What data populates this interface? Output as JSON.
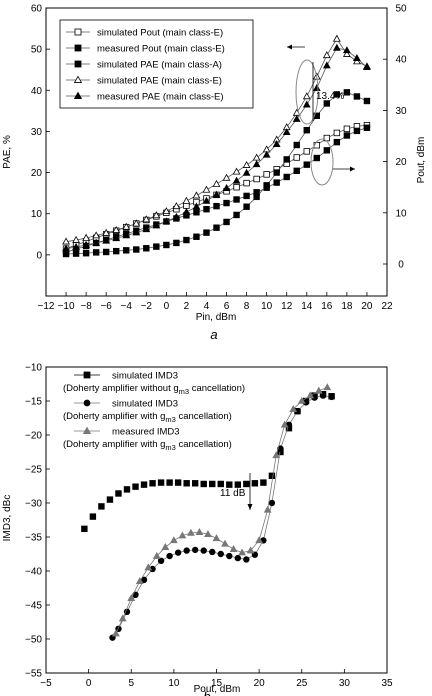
{
  "chart_data": [
    {
      "type": "line",
      "panel_label": "a",
      "xlabel": "Pin, dBm",
      "ylabel": "PAE, %",
      "y2label": "Pout, dBm",
      "xlim": [
        -12,
        22
      ],
      "ylim": [
        -10,
        60
      ],
      "y2lim": [
        -6.25,
        50
      ],
      "xticks": [
        "−12",
        "−10",
        "−8",
        "−6",
        "−4",
        "−2",
        "0",
        "2",
        "4",
        "6",
        "8",
        "10",
        "12",
        "14",
        "16",
        "18",
        "20",
        "22"
      ],
      "yticks": [
        "0",
        "10",
        "20",
        "30",
        "40",
        "50",
        "60"
      ],
      "y2ticks": [
        "0",
        "10",
        "20",
        "30",
        "40",
        "50"
      ],
      "grid": false,
      "legend_position": "top-left",
      "annotation": "13.4%",
      "series": [
        {
          "name": "simulated Pout (main class-E)",
          "axis": "right",
          "marker": "square-open",
          "x": [
            -10,
            -9,
            -8,
            -7,
            -6,
            -5,
            -4,
            -3,
            -2,
            -1,
            0,
            1,
            2,
            3,
            4,
            5,
            6,
            7,
            8,
            9,
            10,
            11,
            12,
            13,
            14,
            15,
            16,
            17,
            18,
            19,
            20
          ],
          "y": [
            3,
            3.7,
            4.4,
            5.1,
            5.8,
            6.5,
            7.2,
            7.9,
            8.6,
            9.3,
            10,
            10.7,
            11.4,
            12.1,
            12.8,
            13.5,
            14.2,
            15,
            15.8,
            16.6,
            17.5,
            18.5,
            19.6,
            20.8,
            22,
            23.2,
            24.6,
            25.6,
            26.4,
            26.9,
            27.1
          ]
        },
        {
          "name": "measured Pout (main class-E)",
          "axis": "right",
          "marker": "square-filled",
          "x": [
            -10,
            -9,
            -8,
            -7,
            -6,
            -5,
            -4,
            -3,
            -2,
            -1,
            0,
            1,
            2,
            3,
            4,
            5,
            6,
            7,
            8,
            9,
            10,
            11,
            12,
            13,
            14,
            15,
            16,
            17,
            18,
            19,
            20
          ],
          "y": [
            2.3,
            2.9,
            3.5,
            4.1,
            4.7,
            5.3,
            5.9,
            6.5,
            7.1,
            7.7,
            8.3,
            8.9,
            9.5,
            10.1,
            10.7,
            11.3,
            11.9,
            12.6,
            13.3,
            14,
            14.9,
            15.9,
            17,
            18.2,
            19.4,
            20.7,
            22.2,
            23.8,
            25.1,
            26,
            26.6
          ]
        },
        {
          "name": "simulated PAE (main class-A)",
          "axis": "left",
          "marker": "square-filled",
          "x": [
            -10,
            -9,
            -8,
            -7,
            -6,
            -5,
            -4,
            -3,
            -2,
            -1,
            0,
            1,
            2,
            3,
            4,
            5,
            6,
            7,
            8,
            9,
            10,
            11,
            12,
            13,
            14,
            15,
            16,
            17,
            18,
            19,
            20
          ],
          "y": [
            0.2,
            0.3,
            0.4,
            0.6,
            0.7,
            0.9,
            1.1,
            1.3,
            1.6,
            2,
            2.4,
            2.9,
            3.6,
            4.4,
            5.4,
            6.6,
            8,
            9.7,
            11.7,
            14.1,
            16.9,
            20,
            23.2,
            26.7,
            30.3,
            33.8,
            36.8,
            39,
            39.5,
            38.5,
            37.4
          ]
        },
        {
          "name": "simulated PAE (main class-E)",
          "axis": "left",
          "marker": "triangle-open",
          "x": [
            -10,
            -9,
            -8,
            -7,
            -6,
            -5,
            -4,
            -3,
            -2,
            -1,
            0,
            1,
            2,
            3,
            4,
            5,
            6,
            7,
            8,
            9,
            10,
            11,
            12,
            13,
            14,
            15,
            16,
            17,
            18,
            19,
            20
          ],
          "y": [
            3.2,
            3.6,
            4.1,
            4.7,
            5.3,
            6,
            6.8,
            7.6,
            8.6,
            9.6,
            10.6,
            11.8,
            13.1,
            14.4,
            15.8,
            17.2,
            18.7,
            20.2,
            21.8,
            23.6,
            25.6,
            28,
            31,
            34.5,
            38.5,
            43.3,
            48.5,
            52.5,
            48.8,
            47,
            45.8
          ]
        },
        {
          "name": "measured PAE (main class-E)",
          "axis": "left",
          "marker": "triangle-filled",
          "x": [
            -10,
            -9,
            -8,
            -7,
            -6,
            -5,
            -4,
            -3,
            -2,
            -1,
            0,
            1,
            2,
            3,
            4,
            5,
            6,
            7,
            8,
            9,
            10,
            11,
            12,
            13,
            14,
            15,
            16,
            17,
            18,
            19,
            20
          ],
          "y": [
            1.5,
            1.9,
            2.4,
            2.9,
            3.4,
            4,
            4.7,
            5.4,
            6.2,
            7.1,
            8.1,
            9.2,
            10.4,
            11.7,
            13.1,
            14.6,
            16.2,
            18,
            19.9,
            22,
            24.3,
            26.9,
            29.8,
            33,
            36.5,
            40.5,
            46,
            50.3,
            49.7,
            47.8,
            45.6
          ]
        }
      ]
    },
    {
      "type": "line",
      "panel_label": "b",
      "xlabel": "Pout, dBm",
      "ylabel": "IMD3, dBc",
      "xlim": [
        -5,
        35
      ],
      "ylim": [
        -55,
        -10
      ],
      "xticks": [
        "−5",
        "0",
        "5",
        "10",
        "15",
        "20",
        "25",
        "30",
        "35"
      ],
      "yticks": [
        "−55",
        "−50",
        "−45",
        "−40",
        "−35",
        "−30",
        "−25",
        "−20",
        "−15",
        "−10"
      ],
      "grid": false,
      "legend_position": "top-left",
      "annotation": "11 dB",
      "series": [
        {
          "name": "simulated IMD3",
          "note": "(Doherty amplifier without gm3 cancellation)",
          "marker": "square-filled",
          "x": [
            -0.5,
            0.5,
            1.5,
            2.5,
            3.5,
            4.5,
            5.5,
            6.5,
            7.5,
            8.5,
            9.5,
            10.5,
            11.5,
            12.5,
            13.5,
            14.5,
            15.5,
            16.5,
            17.5,
            18.5,
            19.5,
            20.5,
            21.5,
            22.5,
            23.5,
            24.5,
            25.5,
            26.5,
            27.5,
            28.5
          ],
          "y": [
            -33.8,
            -32,
            -30.5,
            -29.5,
            -28.6,
            -28,
            -27.6,
            -27.3,
            -27.1,
            -27,
            -27,
            -27,
            -27.1,
            -27.1,
            -27.2,
            -27.2,
            -27.2,
            -27.3,
            -27.3,
            -27.2,
            -27.1,
            -27,
            -26,
            -22.5,
            -19,
            -16.5,
            -15,
            -14.2,
            -14,
            -14.3
          ]
        },
        {
          "name": "simulated IMD3",
          "note": "(Doherty amplifier with gm3 cancellation)",
          "marker": "circle-filled",
          "x": [
            2.8,
            3.5,
            4.5,
            5.5,
            6.5,
            7.5,
            8.5,
            9.5,
            10.5,
            11.5,
            12.5,
            13.5,
            14.5,
            15.5,
            16.5,
            17.5,
            18.5,
            19.5,
            20.5,
            21.5,
            22.5,
            23.5,
            24.5,
            25.5,
            26.5,
            27.5,
            28.5
          ],
          "y": [
            -49.8,
            -48.5,
            -46,
            -43.5,
            -41.3,
            -39.7,
            -38.5,
            -37.8,
            -37.3,
            -37,
            -36.9,
            -37,
            -37.2,
            -37.5,
            -37.8,
            -38.1,
            -38.3,
            -37.6,
            -35.5,
            -30,
            -22,
            -18.5,
            -16.5,
            -15.2,
            -14.5,
            -14.2,
            -14.4
          ]
        },
        {
          "name": "measured IMD3",
          "note": "(Doherty amplifier with gm3 cancellation)",
          "marker": "triangle-filled",
          "x": [
            3.2,
            4,
            5,
            6,
            7,
            8,
            9,
            10,
            11,
            12,
            13,
            14,
            15,
            16,
            17,
            18,
            19,
            20,
            21,
            22,
            23,
            24,
            25,
            26,
            27,
            28
          ],
          "y": [
            -49.2,
            -47,
            -44,
            -41.5,
            -39.5,
            -37.8,
            -36.5,
            -35.5,
            -34.8,
            -34.4,
            -34.3,
            -34.6,
            -35.2,
            -36,
            -36.8,
            -37.3,
            -37,
            -35.5,
            -31,
            -23,
            -18.5,
            -16.2,
            -15,
            -14.2,
            -13.5,
            -13
          ]
        }
      ]
    }
  ]
}
